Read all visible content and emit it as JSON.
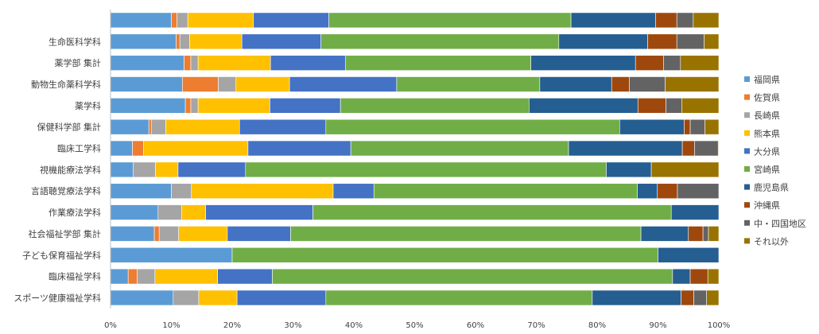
{
  "chart_data": {
    "type": "bar",
    "orientation": "horizontal",
    "stacked": "percent",
    "title": "",
    "xlabel": "",
    "ylabel": "",
    "xlim": [
      0,
      100
    ],
    "x_ticks": [
      "0%",
      "10%",
      "20%",
      "30%",
      "40%",
      "50%",
      "60%",
      "70%",
      "80%",
      "90%",
      "100%"
    ],
    "grid": false,
    "legend_position": "right",
    "categories": [
      "",
      "生命医科学科",
      "薬学部 集計",
      "動物生命薬科学科",
      "薬学科",
      "保健科学部 集計",
      "臨床工学科",
      "視機能療法学科",
      "言語聴覚療法学科",
      "作業療法学科",
      "社会福祉学部 集計",
      "子ども保育福祉学科",
      "臨床福祉学科",
      "スポーツ健康福祉学科"
    ],
    "series": [
      {
        "name": "福岡県",
        "color": "#5B9BD5",
        "values": [
          10.0,
          10.8,
          12.1,
          11.8,
          12.3,
          6.3,
          3.6,
          3.7,
          10.0,
          7.8,
          7.2,
          20.0,
          2.9,
          10.3
        ]
      },
      {
        "name": "佐賀県",
        "color": "#ED7D31",
        "values": [
          0.9,
          0.6,
          1.1,
          5.9,
          0.9,
          0.4,
          1.8,
          0.0,
          0.0,
          0.0,
          0.8,
          0.0,
          1.5,
          0.0
        ]
      },
      {
        "name": "長崎県",
        "color": "#A5A5A5",
        "values": [
          1.8,
          1.6,
          1.2,
          2.9,
          1.2,
          2.4,
          0.0,
          3.7,
          3.3,
          3.9,
          3.2,
          0.0,
          2.9,
          4.2
        ]
      },
      {
        "name": "熊本県",
        "color": "#FFC000",
        "values": [
          10.8,
          8.6,
          11.9,
          8.8,
          11.8,
          12.1,
          17.2,
          3.7,
          23.3,
          3.9,
          8.0,
          0.0,
          10.3,
          6.3
        ]
      },
      {
        "name": "大分県",
        "color": "#4472C4",
        "values": [
          12.4,
          13.0,
          12.3,
          17.6,
          11.6,
          14.2,
          16.9,
          11.1,
          6.7,
          17.6,
          10.4,
          0.0,
          9.0,
          14.6
        ]
      },
      {
        "name": "宮崎県",
        "color": "#70AD47",
        "values": [
          39.8,
          39.1,
          30.5,
          23.5,
          31.0,
          48.3,
          35.8,
          59.3,
          43.3,
          58.8,
          57.6,
          70.0,
          65.8,
          43.8
        ]
      },
      {
        "name": "鹿児島県",
        "color": "#255E91",
        "values": [
          13.9,
          14.6,
          17.2,
          11.8,
          17.9,
          10.6,
          18.7,
          7.4,
          3.3,
          7.8,
          7.8,
          10.0,
          2.9,
          14.6
        ]
      },
      {
        "name": "沖縄県",
        "color": "#9E480E",
        "values": [
          3.5,
          4.8,
          4.6,
          2.9,
          4.6,
          1.0,
          2.0,
          0.0,
          3.3,
          0.0,
          2.4,
          0.0,
          2.9,
          2.1
        ]
      },
      {
        "name": "中・四国地区",
        "color": "#636363",
        "values": [
          2.7,
          4.5,
          2.8,
          5.9,
          2.6,
          2.4,
          3.9,
          0.0,
          6.8,
          0.0,
          0.9,
          0.0,
          0.0,
          2.1
        ]
      },
      {
        "name": "それ以外",
        "color": "#997300",
        "values": [
          4.2,
          2.4,
          6.3,
          8.8,
          6.1,
          2.3,
          0.1,
          11.1,
          0.0,
          0.0,
          1.7,
          0.0,
          1.8,
          2.0
        ]
      }
    ]
  }
}
